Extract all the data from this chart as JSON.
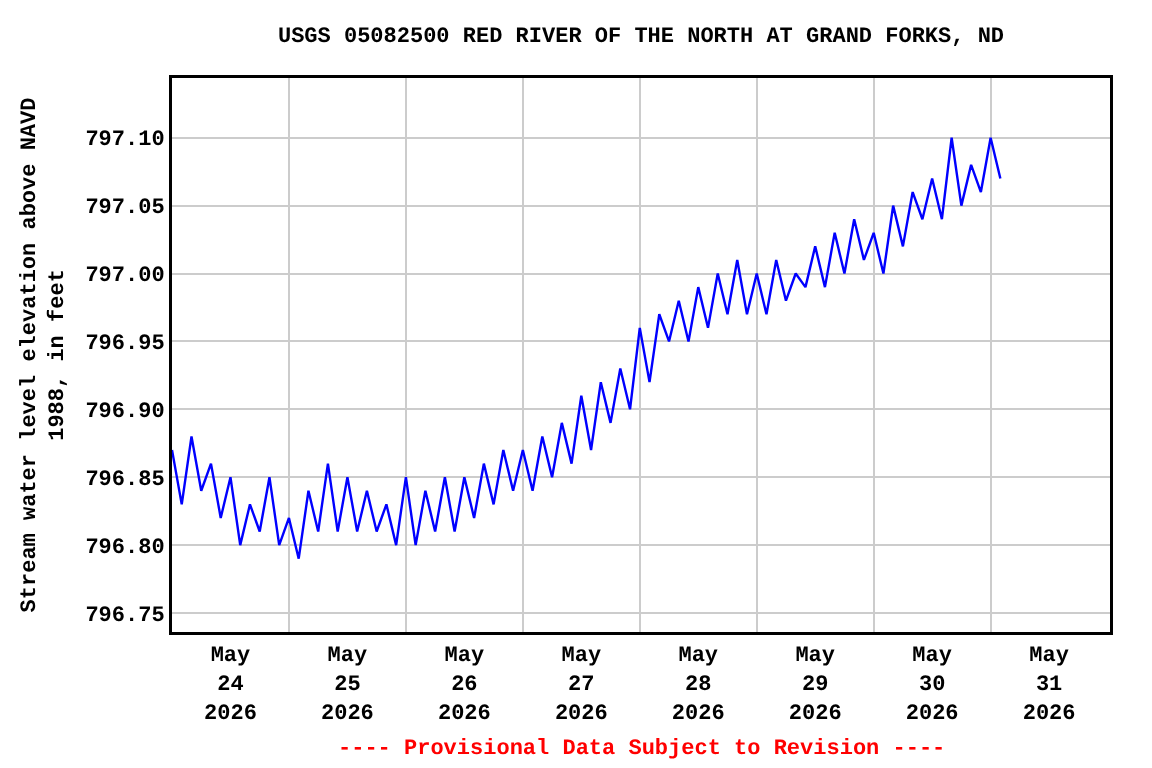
{
  "chart_data": {
    "type": "line",
    "title": "USGS 05082500 RED RIVER OF THE NORTH AT GRAND FORKS, ND",
    "ylabel": "Stream water level elevation above NAVD\n1988, in feet",
    "annotations": [
      "---- Provisional Data Subject to Revision ----"
    ],
    "x": [
      "2026-05-24T00:00",
      "2026-05-24T02:00",
      "2026-05-24T04:00",
      "2026-05-24T06:00",
      "2026-05-24T08:00",
      "2026-05-24T10:00",
      "2026-05-24T12:00",
      "2026-05-24T14:00",
      "2026-05-24T16:00",
      "2026-05-24T18:00",
      "2026-05-24T20:00",
      "2026-05-24T22:00",
      "2026-05-25T00:00",
      "2026-05-25T02:00",
      "2026-05-25T04:00",
      "2026-05-25T06:00",
      "2026-05-25T08:00",
      "2026-05-25T10:00",
      "2026-05-25T12:00",
      "2026-05-25T14:00",
      "2026-05-25T16:00",
      "2026-05-25T18:00",
      "2026-05-25T20:00",
      "2026-05-25T22:00",
      "2026-05-26T00:00",
      "2026-05-26T02:00",
      "2026-05-26T04:00",
      "2026-05-26T06:00",
      "2026-05-26T08:00",
      "2026-05-26T10:00",
      "2026-05-26T12:00",
      "2026-05-26T14:00",
      "2026-05-26T16:00",
      "2026-05-26T18:00",
      "2026-05-26T20:00",
      "2026-05-26T22:00",
      "2026-05-27T00:00",
      "2026-05-27T02:00",
      "2026-05-27T04:00",
      "2026-05-27T06:00",
      "2026-05-27T08:00",
      "2026-05-27T10:00",
      "2026-05-27T12:00",
      "2026-05-27T14:00",
      "2026-05-27T16:00",
      "2026-05-27T18:00",
      "2026-05-27T20:00",
      "2026-05-27T22:00",
      "2026-05-28T00:00",
      "2026-05-28T02:00",
      "2026-05-28T04:00",
      "2026-05-28T06:00",
      "2026-05-28T08:00",
      "2026-05-28T10:00",
      "2026-05-28T12:00",
      "2026-05-28T14:00",
      "2026-05-28T16:00",
      "2026-05-28T18:00",
      "2026-05-28T20:00",
      "2026-05-28T22:00",
      "2026-05-29T00:00",
      "2026-05-29T02:00",
      "2026-05-29T04:00",
      "2026-05-29T06:00",
      "2026-05-29T08:00",
      "2026-05-29T10:00",
      "2026-05-29T12:00",
      "2026-05-29T14:00",
      "2026-05-29T16:00",
      "2026-05-29T18:00",
      "2026-05-29T20:00",
      "2026-05-29T22:00",
      "2026-05-30T00:00",
      "2026-05-30T02:00",
      "2026-05-30T04:00",
      "2026-05-30T06:00",
      "2026-05-30T08:00",
      "2026-05-30T10:00",
      "2026-05-30T12:00",
      "2026-05-30T14:00",
      "2026-05-30T16:00",
      "2026-05-30T18:00",
      "2026-05-30T20:00",
      "2026-05-30T22:00",
      "2026-05-31T00:00",
      "2026-05-31T02:00"
    ],
    "series": [
      {
        "color": "#0000ff",
        "values": [
          796.87,
          796.83,
          796.88,
          796.84,
          796.86,
          796.82,
          796.85,
          796.8,
          796.83,
          796.81,
          796.85,
          796.8,
          796.82,
          796.79,
          796.84,
          796.81,
          796.86,
          796.81,
          796.85,
          796.81,
          796.84,
          796.81,
          796.83,
          796.8,
          796.85,
          796.8,
          796.84,
          796.81,
          796.85,
          796.81,
          796.85,
          796.82,
          796.86,
          796.83,
          796.87,
          796.84,
          796.87,
          796.84,
          796.88,
          796.85,
          796.89,
          796.86,
          796.91,
          796.87,
          796.92,
          796.89,
          796.93,
          796.9,
          796.96,
          796.92,
          796.97,
          796.95,
          796.98,
          796.95,
          796.99,
          796.96,
          797.0,
          796.97,
          797.01,
          796.97,
          797.0,
          796.97,
          797.01,
          796.98,
          797.0,
          796.99,
          797.02,
          796.99,
          797.03,
          797.0,
          797.04,
          797.01,
          797.03,
          797.0,
          797.05,
          797.02,
          797.06,
          797.04,
          797.07,
          797.04,
          797.1,
          797.05,
          797.08,
          797.06,
          797.1,
          797.07
        ]
      }
    ],
    "xlim": [
      "2026-05-24T00:00",
      "2026-06-01T00:30"
    ],
    "xticks": [
      {
        "value": "2026-05-24T12:00",
        "label": "May\n24\n2026"
      },
      {
        "value": "2026-05-25T12:00",
        "label": "May\n25\n2026"
      },
      {
        "value": "2026-05-26T12:00",
        "label": "May\n26\n2026"
      },
      {
        "value": "2026-05-27T12:00",
        "label": "May\n27\n2026"
      },
      {
        "value": "2026-05-28T12:00",
        "label": "May\n28\n2026"
      },
      {
        "value": "2026-05-29T12:00",
        "label": "May\n29\n2026"
      },
      {
        "value": "2026-05-30T12:00",
        "label": "May\n30\n2026"
      },
      {
        "value": "2026-05-31T12:00",
        "label": "May\n31\n2026"
      },
      {
        "value": "2026-05-25T00:00",
        "label": null
      },
      {
        "value": "2026-05-26T00:00",
        "label": null
      },
      {
        "value": "2026-05-27T00:00",
        "label": null
      },
      {
        "value": "2026-05-28T00:00",
        "label": null
      },
      {
        "value": "2026-05-29T00:00",
        "label": null
      },
      {
        "value": "2026-05-30T00:00",
        "label": null
      },
      {
        "value": "2026-05-31T00:00",
        "label": null
      }
    ],
    "ylim": [
      796.736,
      797.144
    ],
    "yticks": [
      {
        "value": 796.75,
        "label": "796.75"
      },
      {
        "value": 796.8,
        "label": "796.80"
      },
      {
        "value": 796.85,
        "label": "796.85"
      },
      {
        "value": 796.9,
        "label": "796.90"
      },
      {
        "value": 796.95,
        "label": "796.95"
      },
      {
        "value": 797.0,
        "label": "797.00"
      },
      {
        "value": 797.05,
        "label": "797.05"
      },
      {
        "value": 797.1,
        "label": "797.10"
      }
    ],
    "grid": true,
    "marker": "none",
    "line_style": "solid"
  }
}
